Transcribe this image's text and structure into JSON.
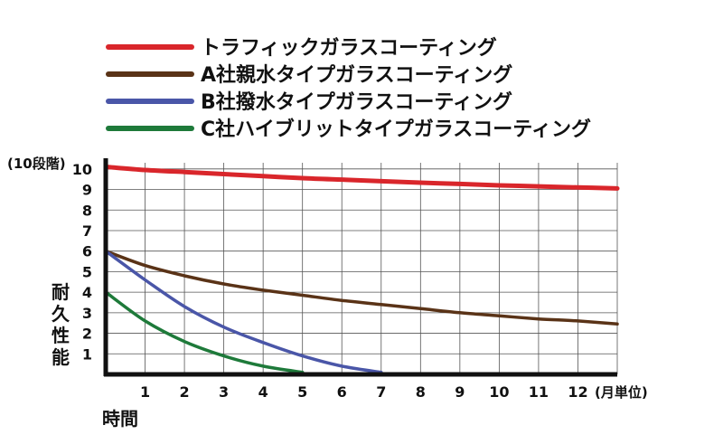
{
  "chart_data": {
    "type": "line",
    "x": [
      0,
      1,
      2,
      3,
      4,
      5,
      6,
      7,
      8,
      9,
      10,
      11,
      12,
      13
    ],
    "xlim": [
      0,
      13
    ],
    "ylim": [
      0,
      10.3
    ],
    "x_tick_labels": [
      "1",
      "2",
      "3",
      "4",
      "5",
      "6",
      "7",
      "8",
      "9",
      "10",
      "11",
      "12"
    ],
    "y_tick_labels": [
      "1",
      "2",
      "3",
      "4",
      "5",
      "6",
      "7",
      "8",
      "9",
      "10"
    ],
    "x_unit_label": "(月単位)",
    "y_unit_label": "(10段階)",
    "xlabel": "時間",
    "ylabel": "耐久性能",
    "grid": true,
    "legend_position": "top",
    "series": [
      {
        "name": "トラフィックガラスコーティング",
        "color": "#d9262b",
        "values": [
          10.1,
          9.95,
          9.85,
          9.75,
          9.65,
          9.55,
          9.48,
          9.4,
          9.33,
          9.27,
          9.2,
          9.15,
          9.1,
          9.05
        ]
      },
      {
        "name": "A社親水タイプガラスコーティング",
        "color": "#5a3317",
        "values": [
          6.0,
          5.3,
          4.8,
          4.4,
          4.1,
          3.85,
          3.6,
          3.4,
          3.2,
          3.0,
          2.85,
          2.7,
          2.6,
          2.45
        ]
      },
      {
        "name": "B社撥水タイプガラスコーティング",
        "color": "#4a56a8",
        "values": [
          6.0,
          4.6,
          3.3,
          2.3,
          1.55,
          0.9,
          0.4,
          0.1,
          null,
          null,
          null,
          null,
          null,
          null
        ]
      },
      {
        "name": "C社ハイブリットタイプガラスコーティング",
        "color": "#1e7a3a",
        "values": [
          4.0,
          2.6,
          1.6,
          0.9,
          0.4,
          0.1,
          null,
          null,
          null,
          null,
          null,
          null,
          null,
          null
        ]
      }
    ]
  }
}
